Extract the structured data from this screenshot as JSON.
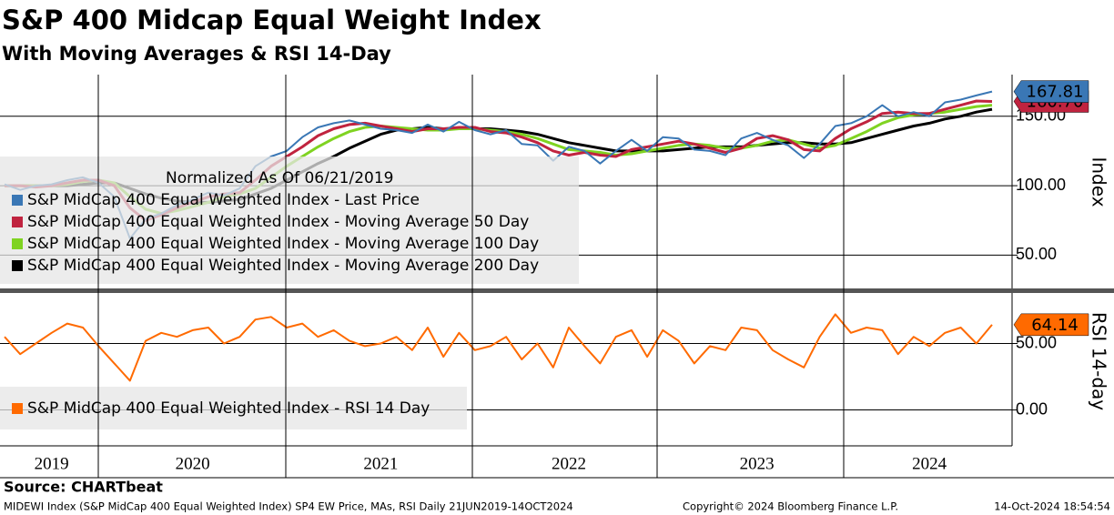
{
  "chart_data": [
    {
      "type": "line",
      "title": "S&P 400 Midcap Equal Weight Index",
      "subtitle": "With Moving Averages & RSI 14-Day",
      "y_label": "Index",
      "legend_title": "Normalized As Of 06/21/2019",
      "categories": [
        null,
        null,
        null,
        "2019",
        null,
        null,
        null,
        null,
        null,
        null,
        null,
        null,
        "2020",
        null,
        null,
        null,
        null,
        null,
        null,
        null,
        null,
        null,
        null,
        null,
        "2021",
        null,
        null,
        null,
        null,
        null,
        null,
        null,
        null,
        null,
        null,
        null,
        "2022",
        null,
        null,
        null,
        null,
        null,
        null,
        null,
        null,
        null,
        null,
        null,
        "2023",
        null,
        null,
        null,
        null,
        null,
        null,
        null,
        null,
        null,
        null,
        "2024",
        null,
        null,
        null,
        null
      ],
      "ylim": [
        26,
        180
      ],
      "yticks": [
        {
          "value": 50,
          "label": "50.00"
        },
        {
          "value": 100,
          "label": "100.00"
        },
        {
          "value": 150,
          "label": "150.00"
        }
      ],
      "grid": true,
      "series": [
        {
          "name": "S&P MidCap 400 Equal Weighted Index - Moving Average 200 Day",
          "color": "#000000",
          "values": [
            100,
            100,
            100,
            100,
            100,
            101,
            102,
            102,
            98,
            94,
            91,
            89,
            88,
            88,
            89,
            90,
            94,
            98,
            104,
            110,
            116,
            121,
            127,
            132,
            137,
            140,
            141,
            142,
            141,
            141,
            141,
            141,
            140,
            139,
            137,
            134,
            131,
            129,
            127,
            125,
            125,
            125,
            125,
            126,
            127,
            128,
            128,
            128,
            129,
            130,
            131,
            131,
            130,
            130,
            131,
            134,
            137,
            140,
            143,
            145,
            148,
            150,
            153,
            155
          ]
        },
        {
          "name": "S&P MidCap 400 Equal Weighted Index - Moving Average 100 Day",
          "color": "#7fd321",
          "values": [
            100,
            100,
            100,
            100,
            101,
            103,
            104,
            102,
            92,
            83,
            80,
            82,
            85,
            88,
            92,
            94,
            98,
            106,
            114,
            121,
            128,
            134,
            139,
            142,
            143,
            142,
            141,
            140,
            140,
            141,
            141,
            140,
            139,
            137,
            134,
            130,
            126,
            125,
            124,
            122,
            123,
            125,
            127,
            129,
            130,
            129,
            127,
            127,
            129,
            132,
            133,
            130,
            127,
            129,
            134,
            139,
            145,
            149,
            151,
            152,
            153,
            155,
            157,
            158
          ]
        },
        {
          "name": "S&P MidCap 400 Equal Weighted Index - Moving Average 50 Day",
          "color": "#c0233f",
          "last_label": "160.70",
          "values": [
            100,
            100,
            99,
            100,
            102,
            104,
            104,
            100,
            84,
            75,
            79,
            84,
            88,
            92,
            94,
            95,
            104,
            114,
            121,
            128,
            136,
            141,
            144,
            145,
            143,
            141,
            139,
            141,
            141,
            142,
            142,
            139,
            138,
            135,
            131,
            125,
            122,
            124,
            122,
            121,
            126,
            128,
            130,
            132,
            130,
            127,
            124,
            127,
            134,
            136,
            133,
            126,
            125,
            134,
            141,
            146,
            152,
            153,
            152,
            152,
            155,
            158,
            161,
            160.7
          ]
        },
        {
          "name": "S&P MidCap 400 Equal Weighted Index - Last Price",
          "color": "#3a77b5",
          "last_label": "167.81",
          "values": [
            101,
            97,
            100,
            101,
            104,
            106,
            102,
            92,
            62,
            76,
            80,
            86,
            90,
            95,
            93,
            98,
            114,
            121,
            125,
            135,
            142,
            145,
            147,
            144,
            141,
            140,
            138,
            144,
            139,
            146,
            140,
            137,
            140,
            130,
            129,
            118,
            128,
            125,
            116,
            125,
            133,
            125,
            135,
            134,
            126,
            125,
            122,
            134,
            138,
            133,
            129,
            120,
            130,
            143,
            145,
            150,
            158,
            150,
            153,
            150,
            160,
            162,
            165,
            167.81
          ]
        }
      ],
      "legend_order": [
        3,
        2,
        1,
        0
      ]
    },
    {
      "type": "line",
      "y_label": "RSI 14-day",
      "ylim": [
        -27,
        88
      ],
      "yticks": [
        {
          "value": 0,
          "label": "0.00"
        },
        {
          "value": 50,
          "label": "50.00"
        }
      ],
      "grid": true,
      "series": [
        {
          "name": "S&P MidCap 400 Equal Weighted Index - RSI 14 Day",
          "color": "#ff6a00",
          "last_label": "64.14",
          "values": [
            55,
            42,
            50,
            58,
            65,
            62,
            48,
            35,
            22,
            52,
            58,
            55,
            60,
            62,
            50,
            55,
            68,
            70,
            62,
            65,
            55,
            60,
            52,
            48,
            50,
            55,
            45,
            62,
            40,
            58,
            45,
            48,
            55,
            38,
            50,
            32,
            62,
            48,
            35,
            55,
            60,
            40,
            60,
            52,
            35,
            48,
            45,
            62,
            60,
            45,
            38,
            32,
            55,
            72,
            58,
            62,
            60,
            42,
            55,
            48,
            58,
            62,
            50,
            64.14
          ]
        }
      ]
    }
  ],
  "footer": {
    "source": "Source: CHARTbeat",
    "description": "MIDEWI Index (S&P MidCap 400 Equal Weighted Index) SP4 EW Price, MAs, RSI  Daily 21JUN2019-14OCT2024",
    "copyright": "Copyright© 2024 Bloomberg Finance L.P.",
    "timestamp": "14-Oct-2024 18:54:54"
  }
}
